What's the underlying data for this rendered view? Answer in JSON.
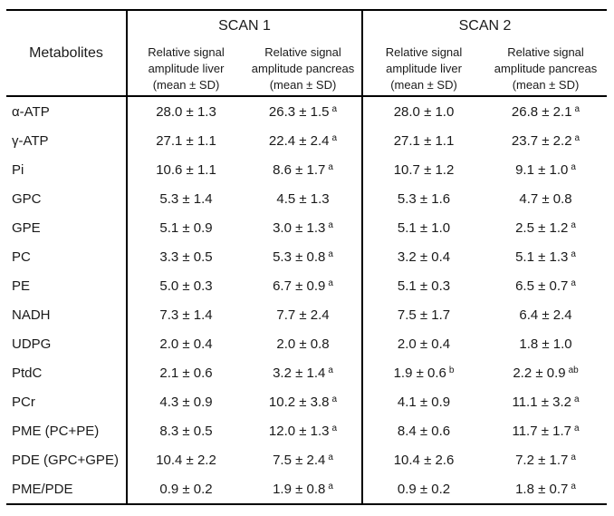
{
  "header": {
    "metabolites": "Metabolites",
    "scan1": "SCAN 1",
    "scan2": "SCAN 2",
    "sub_liver": "Relative signal\namplitude liver\n(mean ±  SD)",
    "sub_pancreas": "Relative signal\namplitude pancreas\n(mean ±  SD)"
  },
  "colors": {
    "border": "#000000",
    "text": "#1a1a1a",
    "background": "#ffffff"
  },
  "rows": [
    {
      "metabolite": "α-ATP",
      "cells": [
        {
          "v": "28.0 ± 1.3"
        },
        {
          "v": "26.3 ± 1.5",
          "sup": "a"
        },
        {
          "v": "28.0 ± 1.0"
        },
        {
          "v": "26.8 ± 2.1",
          "sup": "a"
        }
      ]
    },
    {
      "metabolite": "γ-ATP",
      "cells": [
        {
          "v": "27.1 ± 1.1"
        },
        {
          "v": "22.4 ± 2.4",
          "sup": "a"
        },
        {
          "v": "27.1 ± 1.1"
        },
        {
          "v": "23.7 ± 2.2",
          "sup": "a"
        }
      ]
    },
    {
      "metabolite": "Pi",
      "cells": [
        {
          "v": "10.6 ± 1.1"
        },
        {
          "v": "8.6 ± 1.7",
          "sup": "a"
        },
        {
          "v": "10.7 ± 1.2"
        },
        {
          "v": "9.1 ± 1.0",
          "sup": "a"
        }
      ]
    },
    {
      "metabolite": "GPC",
      "cells": [
        {
          "v": "5.3 ± 1.4"
        },
        {
          "v": "4.5 ± 1.3"
        },
        {
          "v": "5.3 ± 1.6"
        },
        {
          "v": "4.7 ± 0.8"
        }
      ]
    },
    {
      "metabolite": "GPE",
      "cells": [
        {
          "v": "5.1 ± 0.9"
        },
        {
          "v": "3.0 ± 1.3",
          "sup": "a"
        },
        {
          "v": "5.1 ± 1.0"
        },
        {
          "v": "2.5 ± 1.2",
          "sup": "a"
        }
      ]
    },
    {
      "metabolite": "PC",
      "cells": [
        {
          "v": "3.3 ± 0.5"
        },
        {
          "v": "5.3 ± 0.8",
          "sup": "a"
        },
        {
          "v": "3.2 ± 0.4"
        },
        {
          "v": "5.1 ± 1.3",
          "sup": "a"
        }
      ]
    },
    {
      "metabolite": "PE",
      "cells": [
        {
          "v": "5.0 ± 0.3"
        },
        {
          "v": "6.7 ± 0.9",
          "sup": "a"
        },
        {
          "v": "5.1 ± 0.3"
        },
        {
          "v": "6.5 ± 0.7",
          "sup": "a"
        }
      ]
    },
    {
      "metabolite": "NADH",
      "cells": [
        {
          "v": "7.3 ± 1.4"
        },
        {
          "v": "7.7 ± 2.4"
        },
        {
          "v": "7.5 ± 1.7"
        },
        {
          "v": "6.4 ± 2.4"
        }
      ]
    },
    {
      "metabolite": "UDPG",
      "cells": [
        {
          "v": "2.0 ± 0.4"
        },
        {
          "v": "2.0 ± 0.8"
        },
        {
          "v": "2.0 ± 0.4"
        },
        {
          "v": "1.8 ± 1.0"
        }
      ]
    },
    {
      "metabolite": "PtdC",
      "cells": [
        {
          "v": "2.1 ± 0.6"
        },
        {
          "v": "3.2 ± 1.4",
          "sup": "a"
        },
        {
          "v": "1.9 ± 0.6",
          "sup": "b"
        },
        {
          "v": "2.2 ± 0.9",
          "sup": "ab"
        }
      ]
    },
    {
      "metabolite": "PCr",
      "cells": [
        {
          "v": "4.3 ± 0.9"
        },
        {
          "v": "10.2 ± 3.8",
          "sup": "a"
        },
        {
          "v": "4.1 ± 0.9"
        },
        {
          "v": "11.1 ± 3.2",
          "sup": "a"
        }
      ]
    },
    {
      "metabolite": "PME (PC+PE)",
      "cells": [
        {
          "v": "8.3 ± 0.5"
        },
        {
          "v": "12.0 ± 1.3",
          "sup": "a"
        },
        {
          "v": "8.4 ± 0.6"
        },
        {
          "v": "11.7 ± 1.7",
          "sup": "a"
        }
      ]
    },
    {
      "metabolite": "PDE (GPC+GPE)",
      "cells": [
        {
          "v": "10.4 ± 2.2"
        },
        {
          "v": "7.5 ± 2.4",
          "sup": "a"
        },
        {
          "v": "10.4 ± 2.6"
        },
        {
          "v": "7.2 ± 1.7",
          "sup": "a"
        }
      ]
    },
    {
      "metabolite": "PME/PDE",
      "cells": [
        {
          "v": "0.9 ± 0.2"
        },
        {
          "v": "1.9 ± 0.8",
          "sup": "a"
        },
        {
          "v": "0.9 ± 0.2"
        },
        {
          "v": "1.8 ± 0.7",
          "sup": "a"
        }
      ]
    }
  ]
}
